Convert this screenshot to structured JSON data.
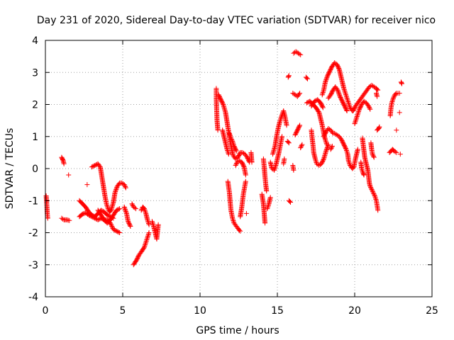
{
  "chart_data": {
    "type": "scatter",
    "title": "Day 231 of 2020, Sidereal Day-to-day VTEC variation (SDTVAR) for receiver nico",
    "xlabel": "GPS time / hours",
    "ylabel": "SDTVAR / TECUs",
    "xlim": [
      0,
      25
    ],
    "ylim": [
      -4,
      4
    ],
    "xticks": [
      0,
      5,
      10,
      15,
      20,
      25
    ],
    "yticks": [
      -4,
      -3,
      -2,
      -1,
      0,
      1,
      2,
      3,
      4
    ],
    "grid": true,
    "marker": "+",
    "colors": {
      "series": "#ff0000",
      "grid": "#a0a0a0",
      "axis": "#000000"
    },
    "segments": [
      [
        [
          0.05,
          -0.85
        ],
        [
          0.08,
          -1.05
        ],
        [
          0.1,
          -1.2
        ],
        [
          0.12,
          -1.4
        ],
        [
          0.15,
          -1.55
        ]
      ],
      [
        [
          1.05,
          0.35
        ],
        [
          1.1,
          0.3
        ],
        [
          1.15,
          0.25
        ],
        [
          1.2,
          0.15
        ]
      ],
      [
        [
          1.5,
          -0.2
        ]
      ],
      [
        [
          1.05,
          -1.55
        ],
        [
          1.2,
          -1.6
        ],
        [
          1.4,
          -1.6
        ],
        [
          1.55,
          -1.62
        ]
      ],
      [
        [
          2.2,
          -1.0
        ],
        [
          2.4,
          -1.1
        ],
        [
          2.6,
          -1.2
        ],
        [
          2.8,
          -1.35
        ],
        [
          3.0,
          -1.45
        ],
        [
          3.2,
          -1.5
        ],
        [
          3.4,
          -1.4
        ],
        [
          3.6,
          -1.3
        ],
        [
          3.8,
          -1.35
        ],
        [
          4.0,
          -1.45
        ],
        [
          4.2,
          -1.5
        ],
        [
          4.4,
          -1.55
        ]
      ],
      [
        [
          2.2,
          -1.5
        ],
        [
          2.4,
          -1.42
        ],
        [
          2.6,
          -1.38
        ],
        [
          2.8,
          -1.45
        ],
        [
          3.0,
          -1.5
        ],
        [
          3.2,
          -1.55
        ],
        [
          3.4,
          -1.6
        ],
        [
          3.6,
          -1.55
        ],
        [
          3.8,
          -1.6
        ],
        [
          4.0,
          -1.6
        ],
        [
          4.2,
          -1.7
        ],
        [
          4.4,
          -1.9
        ],
        [
          4.6,
          -1.95
        ],
        [
          4.8,
          -2.0
        ]
      ],
      [
        [
          2.7,
          -0.5
        ]
      ],
      [
        [
          3.0,
          0.05
        ],
        [
          3.2,
          0.1
        ],
        [
          3.4,
          0.15
        ],
        [
          3.55,
          0.05
        ],
        [
          3.65,
          -0.25
        ],
        [
          3.75,
          -0.55
        ],
        [
          3.85,
          -0.85
        ],
        [
          3.95,
          -1.1
        ],
        [
          4.05,
          -1.25
        ],
        [
          4.15,
          -1.35
        ],
        [
          4.25,
          -1.3
        ],
        [
          4.4,
          -1.05
        ],
        [
          4.5,
          -0.75
        ],
        [
          4.65,
          -0.55
        ],
        [
          4.8,
          -0.45
        ],
        [
          4.95,
          -0.45
        ],
        [
          5.1,
          -0.5
        ],
        [
          5.2,
          -0.6
        ]
      ],
      [
        [
          3.4,
          -1.3
        ],
        [
          3.6,
          -1.45
        ],
        [
          3.8,
          -1.6
        ],
        [
          4.0,
          -1.7
        ],
        [
          4.2,
          -1.6
        ],
        [
          4.4,
          -1.45
        ],
        [
          4.6,
          -1.3
        ],
        [
          4.8,
          -1.25
        ]
      ],
      [
        [
          5.1,
          -1.2
        ],
        [
          5.25,
          -1.4
        ],
        [
          5.35,
          -1.65
        ],
        [
          5.5,
          -1.8
        ]
      ],
      [
        [
          5.6,
          -1.1
        ],
        [
          5.7,
          -1.2
        ],
        [
          5.85,
          -1.25
        ]
      ],
      [
        [
          5.7,
          -3.0
        ],
        [
          5.9,
          -2.85
        ],
        [
          6.05,
          -2.7
        ],
        [
          6.2,
          -2.6
        ],
        [
          6.4,
          -2.45
        ],
        [
          6.5,
          -2.3
        ],
        [
          6.6,
          -2.15
        ],
        [
          6.7,
          -2.0
        ]
      ],
      [
        [
          6.2,
          -1.3
        ],
        [
          6.3,
          -1.2
        ],
        [
          6.4,
          -1.25
        ],
        [
          6.5,
          -1.4
        ],
        [
          6.6,
          -1.6
        ],
        [
          6.7,
          -1.75
        ]
      ],
      [
        [
          6.9,
          -1.65
        ],
        [
          7.0,
          -1.8
        ],
        [
          7.1,
          -2.0
        ],
        [
          7.2,
          -2.2
        ],
        [
          7.3,
          -1.75
        ]
      ],
      [
        [
          11.05,
          2.5
        ],
        [
          11.05,
          2.2
        ],
        [
          11.1,
          1.5
        ],
        [
          11.15,
          1.2
        ]
      ],
      [
        [
          11.2,
          2.3
        ],
        [
          11.35,
          2.15
        ],
        [
          11.5,
          2.0
        ],
        [
          11.65,
          1.75
        ],
        [
          11.75,
          1.45
        ],
        [
          11.85,
          1.15
        ],
        [
          11.95,
          0.85
        ],
        [
          12.05,
          0.6
        ],
        [
          12.15,
          0.4
        ],
        [
          12.3,
          0.3
        ],
        [
          12.45,
          0.35
        ],
        [
          12.6,
          0.5
        ],
        [
          12.75,
          0.5
        ],
        [
          12.9,
          0.45
        ],
        [
          13.05,
          0.35
        ],
        [
          13.2,
          0.2
        ]
      ],
      [
        [
          11.45,
          1.2
        ],
        [
          11.55,
          1.0
        ],
        [
          11.65,
          0.8
        ],
        [
          11.75,
          0.6
        ],
        [
          11.85,
          0.45
        ]
      ],
      [
        [
          11.9,
          1.1
        ],
        [
          12.0,
          0.95
        ],
        [
          12.1,
          0.85
        ],
        [
          12.2,
          0.7
        ],
        [
          12.35,
          0.55
        ]
      ],
      [
        [
          11.8,
          -0.4
        ],
        [
          11.9,
          -0.75
        ],
        [
          11.95,
          -1.05
        ],
        [
          12.0,
          -1.3
        ],
        [
          12.1,
          -1.55
        ],
        [
          12.2,
          -1.7
        ],
        [
          12.35,
          -1.8
        ],
        [
          12.5,
          -1.9
        ],
        [
          12.6,
          -1.95
        ]
      ],
      [
        [
          12.3,
          0.1
        ],
        [
          12.4,
          0.2
        ],
        [
          12.55,
          0.25
        ],
        [
          12.7,
          0.2
        ],
        [
          12.85,
          0.05
        ],
        [
          12.95,
          -0.2
        ]
      ],
      [
        [
          12.6,
          -1.5
        ],
        [
          12.7,
          -1.2
        ],
        [
          12.8,
          -0.8
        ],
        [
          12.95,
          -0.4
        ]
      ],
      [
        [
          13.0,
          -1.4
        ]
      ],
      [
        [
          13.3,
          0.5
        ],
        [
          13.35,
          0.2
        ]
      ],
      [
        [
          14.0,
          -0.8
        ],
        [
          14.1,
          -1.1
        ],
        [
          14.15,
          -1.4
        ],
        [
          14.2,
          -1.7
        ]
      ],
      [
        [
          14.1,
          0.3
        ],
        [
          14.15,
          0.05
        ],
        [
          14.2,
          -0.25
        ],
        [
          14.25,
          -0.5
        ],
        [
          14.3,
          -0.7
        ]
      ],
      [
        [
          14.35,
          -1.25
        ],
        [
          14.45,
          -1.1
        ],
        [
          14.55,
          -0.9
        ]
      ],
      [
        [
          14.55,
          0.2
        ],
        [
          14.65,
          0.0
        ],
        [
          14.8,
          -0.05
        ],
        [
          14.9,
          0.1
        ],
        [
          15.0,
          0.3
        ],
        [
          15.1,
          0.5
        ],
        [
          15.2,
          0.75
        ],
        [
          15.3,
          1.0
        ]
      ],
      [
        [
          14.7,
          0.45
        ],
        [
          14.85,
          0.7
        ],
        [
          14.95,
          1.0
        ],
        [
          15.05,
          1.25
        ],
        [
          15.15,
          1.45
        ],
        [
          15.25,
          1.6
        ],
        [
          15.4,
          1.8
        ],
        [
          15.5,
          1.6
        ],
        [
          15.6,
          1.35
        ]
      ],
      [
        [
          15.4,
          0.15
        ],
        [
          15.45,
          0.3
        ]
      ],
      [
        [
          15.65,
          0.85
        ],
        [
          15.75,
          0.8
        ]
      ],
      [
        [
          15.7,
          2.85
        ],
        [
          15.75,
          2.9
        ]
      ],
      [
        [
          15.75,
          -1.0
        ],
        [
          15.85,
          -1.05
        ]
      ],
      [
        [
          16.05,
          3.6
        ],
        [
          16.2,
          3.65
        ],
        [
          16.35,
          3.6
        ],
        [
          16.5,
          3.55
        ]
      ],
      [
        [
          16.0,
          2.35
        ],
        [
          16.15,
          2.3
        ],
        [
          16.3,
          2.25
        ],
        [
          16.45,
          2.35
        ]
      ],
      [
        [
          16.0,
          0.1
        ],
        [
          16.05,
          -0.05
        ]
      ],
      [
        [
          16.15,
          1.05
        ],
        [
          16.3,
          1.2
        ],
        [
          16.45,
          1.35
        ]
      ],
      [
        [
          16.5,
          0.65
        ],
        [
          16.6,
          0.75
        ]
      ],
      [
        [
          16.85,
          2.85
        ],
        [
          16.95,
          2.8
        ]
      ],
      [
        [
          16.9,
          2.05
        ],
        [
          17.1,
          2.1
        ],
        [
          17.3,
          2.0
        ],
        [
          17.5,
          1.9
        ],
        [
          17.7,
          1.75
        ],
        [
          17.8,
          1.55
        ],
        [
          17.9,
          1.35
        ],
        [
          18.0,
          1.1
        ],
        [
          18.1,
          0.9
        ],
        [
          18.2,
          0.75
        ]
      ],
      [
        [
          17.2,
          1.2
        ],
        [
          17.25,
          0.95
        ],
        [
          17.3,
          0.75
        ],
        [
          17.35,
          0.5
        ],
        [
          17.45,
          0.3
        ],
        [
          17.55,
          0.15
        ],
        [
          17.7,
          0.1
        ],
        [
          17.85,
          0.15
        ],
        [
          18.0,
          0.3
        ],
        [
          18.15,
          0.55
        ],
        [
          18.3,
          0.75
        ]
      ],
      [
        [
          17.2,
          1.95
        ],
        [
          17.4,
          2.1
        ],
        [
          17.6,
          2.15
        ],
        [
          17.8,
          2.05
        ],
        [
          17.95,
          1.9
        ]
      ],
      [
        [
          17.9,
          2.3
        ],
        [
          18.0,
          2.45
        ],
        [
          18.1,
          2.7
        ],
        [
          18.25,
          2.9
        ],
        [
          18.4,
          3.05
        ],
        [
          18.55,
          3.2
        ],
        [
          18.7,
          3.3
        ],
        [
          18.85,
          3.25
        ],
        [
          19.0,
          3.1
        ],
        [
          19.1,
          2.9
        ],
        [
          19.2,
          2.7
        ],
        [
          19.3,
          2.5
        ],
        [
          19.4,
          2.35
        ],
        [
          19.5,
          2.2
        ],
        [
          19.6,
          2.05
        ],
        [
          19.7,
          1.9
        ],
        [
          19.85,
          1.8
        ]
      ],
      [
        [
          18.0,
          1.0
        ],
        [
          18.15,
          1.15
        ],
        [
          18.3,
          1.25
        ],
        [
          18.45,
          1.2
        ],
        [
          18.6,
          1.1
        ]
      ],
      [
        [
          18.3,
          2.2
        ],
        [
          18.45,
          2.3
        ],
        [
          18.6,
          2.45
        ],
        [
          18.75,
          2.55
        ],
        [
          18.9,
          2.45
        ],
        [
          19.05,
          2.25
        ],
        [
          19.2,
          2.1
        ],
        [
          19.35,
          1.95
        ],
        [
          19.5,
          1.8
        ]
      ],
      [
        [
          18.45,
          0.6
        ],
        [
          18.55,
          0.7
        ]
      ],
      [
        [
          18.7,
          1.1
        ],
        [
          18.85,
          1.05
        ],
        [
          19.0,
          1.0
        ],
        [
          19.15,
          0.9
        ],
        [
          19.3,
          0.75
        ],
        [
          19.45,
          0.6
        ],
        [
          19.55,
          0.45
        ],
        [
          19.6,
          0.25
        ],
        [
          19.7,
          0.1
        ],
        [
          19.85,
          0.0
        ],
        [
          19.95,
          0.05
        ],
        [
          20.05,
          0.3
        ],
        [
          20.2,
          0.6
        ]
      ],
      [
        [
          19.9,
          1.8
        ],
        [
          20.05,
          1.95
        ],
        [
          20.2,
          2.05
        ],
        [
          20.35,
          2.15
        ],
        [
          20.5,
          2.25
        ],
        [
          20.65,
          2.35
        ],
        [
          20.8,
          2.45
        ],
        [
          20.95,
          2.55
        ],
        [
          21.1,
          2.6
        ],
        [
          21.25,
          2.55
        ],
        [
          21.4,
          2.5
        ],
        [
          21.5,
          2.45
        ]
      ],
      [
        [
          20.0,
          1.4
        ],
        [
          20.1,
          1.55
        ],
        [
          20.2,
          1.7
        ],
        [
          20.3,
          1.85
        ],
        [
          20.45,
          2.0
        ],
        [
          20.6,
          2.1
        ],
        [
          20.75,
          2.05
        ],
        [
          20.9,
          1.95
        ],
        [
          21.0,
          1.85
        ]
      ],
      [
        [
          20.5,
          0.95
        ],
        [
          20.55,
          0.75
        ],
        [
          20.6,
          0.55
        ],
        [
          20.65,
          0.35
        ],
        [
          20.75,
          0.15
        ],
        [
          20.85,
          -0.05
        ],
        [
          20.9,
          -0.25
        ],
        [
          20.95,
          -0.45
        ],
        [
          21.0,
          -0.55
        ],
        [
          21.1,
          -0.65
        ],
        [
          21.2,
          -0.75
        ],
        [
          21.3,
          -0.85
        ],
        [
          21.4,
          -1.0
        ],
        [
          21.45,
          -1.15
        ],
        [
          21.5,
          -1.3
        ]
      ],
      [
        [
          20.4,
          0.2
        ],
        [
          20.45,
          0.0
        ],
        [
          20.55,
          -0.15
        ],
        [
          20.6,
          -0.2
        ]
      ],
      [
        [
          21.05,
          0.8
        ],
        [
          21.1,
          0.6
        ],
        [
          21.15,
          0.45
        ],
        [
          21.25,
          0.35
        ]
      ],
      [
        [
          21.45,
          1.2
        ],
        [
          21.55,
          1.25
        ],
        [
          21.6,
          1.3
        ]
      ],
      [
        [
          21.4,
          2.35
        ],
        [
          21.45,
          2.25
        ]
      ],
      [
        [
          22.3,
          1.65
        ],
        [
          22.35,
          1.9
        ],
        [
          22.4,
          2.05
        ],
        [
          22.5,
          2.2
        ],
        [
          22.6,
          2.3
        ],
        [
          22.7,
          2.35
        ],
        [
          22.8,
          2.35
        ],
        [
          22.9,
          2.35
        ]
      ],
      [
        [
          22.25,
          0.5
        ],
        [
          22.35,
          0.55
        ],
        [
          22.45,
          0.6
        ],
        [
          22.55,
          0.55
        ],
        [
          22.7,
          0.5
        ]
      ],
      [
        [
          22.7,
          1.2
        ]
      ],
      [
        [
          22.9,
          1.75
        ]
      ],
      [
        [
          22.95,
          0.45
        ]
      ],
      [
        [
          23.0,
          2.7
        ],
        [
          23.05,
          2.65
        ]
      ]
    ]
  }
}
